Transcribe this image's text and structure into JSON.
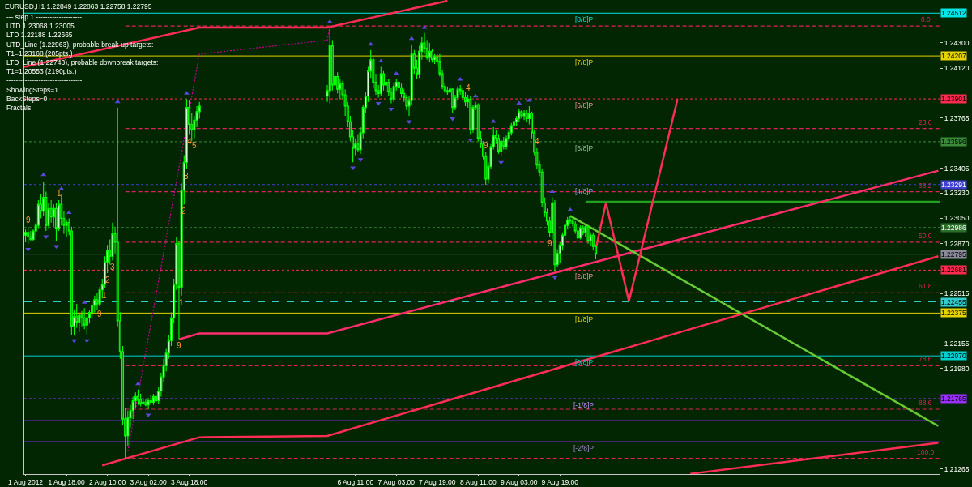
{
  "chart_data": {
    "type": "candlestick",
    "title": "EURUSD,H1 1.22849 1.22863 1.22758 1.22795",
    "color": "#00ff00",
    "x": [
      "2012-08-01T02:00",
      "2012-08-01T03:00",
      "2012-08-01T04:00",
      "2012-08-01T05:00",
      "2012-08-01T06:00",
      "2012-08-01T07:00",
      "2012-08-01T08:00",
      "2012-08-01T09:00",
      "2012-08-01T10:00",
      "2012-08-01T11:00",
      "2012-08-01T12:00",
      "2012-08-01T13:00",
      "2012-08-01T14:00",
      "2012-08-01T15:00",
      "2012-08-01T16:00",
      "2012-08-01T17:00",
      "2012-08-01T18:00",
      "2012-08-01T19:00",
      "2012-08-01T20:00",
      "2012-08-01T21:00",
      "2012-08-01T22:00",
      "2012-08-01T23:00",
      "2012-08-02T00:00",
      "2012-08-02T01:00",
      "2012-08-02T02:00",
      "2012-08-02T03:00",
      "2012-08-02T04:00",
      "2012-08-02T05:00",
      "2012-08-02T06:00",
      "2012-08-02T07:00",
      "2012-08-02T08:00",
      "2012-08-02T09:00",
      "2012-08-02T10:00",
      "2012-08-02T11:00",
      "2012-08-02T12:00",
      "2012-08-02T13:00",
      "2012-08-02T14:00",
      "2012-08-02T15:00",
      "2012-08-02T16:00",
      "2012-08-02T17:00",
      "2012-08-02T18:00",
      "2012-08-02T19:00",
      "2012-08-02T20:00",
      "2012-08-02T21:00",
      "2012-08-02T22:00",
      "2012-08-02T23:00",
      "2012-08-03T00:00",
      "2012-08-03T01:00",
      "2012-08-03T02:00",
      "2012-08-03T03:00",
      "2012-08-03T04:00",
      "2012-08-03T05:00",
      "2012-08-03T06:00",
      "2012-08-03T07:00",
      "2012-08-03T08:00",
      "2012-08-03T09:00",
      "2012-08-03T10:00",
      "2012-08-03T11:00",
      "2012-08-03T12:00",
      "2012-08-03T13:00",
      "2012-08-03T14:00",
      "2012-08-03T15:00",
      "2012-08-03T16:00",
      "2012-08-03T17:00",
      "2012-08-03T18:00",
      "2012-08-03T19:00",
      "2012-08-03T20:00",
      "2012-08-03T21:00",
      "2012-08-03T22:00",
      "2012-08-06T00:00",
      "2012-08-06T01:00",
      "2012-08-06T02:00",
      "2012-08-06T03:00",
      "2012-08-06T04:00",
      "2012-08-06T05:00",
      "2012-08-06T06:00",
      "2012-08-06T07:00",
      "2012-08-06T08:00",
      "2012-08-06T09:00",
      "2012-08-06T10:00",
      "2012-08-06T11:00",
      "2012-08-06T12:00",
      "2012-08-06T13:00",
      "2012-08-06T14:00",
      "2012-08-06T15:00",
      "2012-08-06T16:00",
      "2012-08-06T17:00",
      "2012-08-06T18:00",
      "2012-08-06T19:00",
      "2012-08-06T20:00",
      "2012-08-06T21:00",
      "2012-08-06T22:00",
      "2012-08-06T23:00",
      "2012-08-07T00:00",
      "2012-08-07T01:00",
      "2012-08-07T02:00",
      "2012-08-07T03:00",
      "2012-08-07T04:00",
      "2012-08-07T05:00",
      "2012-08-07T06:00",
      "2012-08-07T07:00",
      "2012-08-07T08:00",
      "2012-08-07T09:00",
      "2012-08-07T10:00",
      "2012-08-07T11:00",
      "2012-08-07T12:00",
      "2012-08-07T13:00",
      "2012-08-07T14:00",
      "2012-08-07T15:00",
      "2012-08-07T16:00",
      "2012-08-07T17:00",
      "2012-08-07T18:00",
      "2012-08-07T19:00",
      "2012-08-07T20:00",
      "2012-08-07T21:00",
      "2012-08-07T22:00",
      "2012-08-07T23:00",
      "2012-08-08T00:00",
      "2012-08-08T01:00",
      "2012-08-08T02:00",
      "2012-08-08T03:00",
      "2012-08-08T04:00",
      "2012-08-08T05:00",
      "2012-08-08T06:00",
      "2012-08-08T07:00",
      "2012-08-08T08:00",
      "2012-08-08T09:00",
      "2012-08-08T10:00",
      "2012-08-08T11:00",
      "2012-08-08T12:00",
      "2012-08-08T13:00",
      "2012-08-08T14:00",
      "2012-08-08T15:00",
      "2012-08-08T16:00",
      "2012-08-08T17:00",
      "2012-08-08T18:00",
      "2012-08-08T19:00",
      "2012-08-08T20:00",
      "2012-08-08T21:00",
      "2012-08-08T22:00",
      "2012-08-08T23:00",
      "2012-08-09T00:00",
      "2012-08-09T01:00",
      "2012-08-09T02:00",
      "2012-08-09T03:00",
      "2012-08-09T04:00",
      "2012-08-09T05:00",
      "2012-08-09T06:00",
      "2012-08-09T07:00",
      "2012-08-09T08:00",
      "2012-08-09T09:00",
      "2012-08-09T10:00",
      "2012-08-09T11:00",
      "2012-08-09T12:00",
      "2012-08-09T13:00",
      "2012-08-09T14:00",
      "2012-08-09T15:00",
      "2012-08-09T16:00",
      "2012-08-09T17:00",
      "2012-08-09T18:00",
      "2012-08-09T19:00",
      "2012-08-09T20:00",
      "2012-08-09T21:00",
      "2012-08-09T22:00",
      "2012-08-09T23:00",
      "2012-08-10T00:00",
      "2012-08-10T01:00",
      "2012-08-10T02:00",
      "2012-08-10T03:00",
      "2012-08-10T04:00",
      "2012-08-10T05:00",
      "2012-08-10T06:00",
      "2012-08-10T07:00",
      "2012-08-10T08:00",
      "2012-08-10T09:00"
    ],
    "ohlc": [
      [
        1.2293,
        1.2297,
        1.2288,
        1.2295
      ],
      [
        1.2295,
        1.2299,
        1.2287,
        1.2292
      ],
      [
        1.2292,
        1.2296,
        1.2289,
        1.229
      ],
      [
        1.229,
        1.2297,
        1.2289,
        1.2296
      ],
      [
        1.2296,
        1.2302,
        1.2293,
        1.23
      ],
      [
        1.23,
        1.2318,
        1.2298,
        1.2315
      ],
      [
        1.2315,
        1.2322,
        1.2305,
        1.231
      ],
      [
        1.231,
        1.2331,
        1.2307,
        1.232
      ],
      [
        1.232,
        1.2324,
        1.2296,
        1.23
      ],
      [
        1.23,
        1.2316,
        1.2298,
        1.2312
      ],
      [
        1.2312,
        1.2318,
        1.2302,
        1.2306
      ],
      [
        1.2306,
        1.2315,
        1.2299,
        1.2312
      ],
      [
        1.2312,
        1.2316,
        1.2289,
        1.2298
      ],
      [
        1.2298,
        1.2318,
        1.2296,
        1.2315
      ],
      [
        1.2315,
        1.2322,
        1.23,
        1.2305
      ],
      [
        1.2305,
        1.231,
        1.2294,
        1.23
      ],
      [
        1.23,
        1.2304,
        1.2292,
        1.2302
      ],
      [
        1.2302,
        1.2305,
        1.2293,
        1.2296
      ],
      [
        1.2296,
        1.2299,
        1.2222,
        1.2228
      ],
      [
        1.2228,
        1.224,
        1.2222,
        1.2235
      ],
      [
        1.2235,
        1.2244,
        1.2227,
        1.2231
      ],
      [
        1.2231,
        1.2238,
        1.2224,
        1.2236
      ],
      [
        1.2236,
        1.2239,
        1.2228,
        1.2234
      ],
      [
        1.2234,
        1.2241,
        1.2226,
        1.2229
      ],
      [
        1.2229,
        1.2237,
        1.2222,
        1.2234
      ],
      [
        1.2234,
        1.224,
        1.223,
        1.2238
      ],
      [
        1.2238,
        1.2246,
        1.2234,
        1.2243
      ],
      [
        1.2243,
        1.225,
        1.2238,
        1.2247
      ],
      [
        1.2247,
        1.2252,
        1.224,
        1.2244
      ],
      [
        1.2244,
        1.2256,
        1.2242,
        1.2254
      ],
      [
        1.2254,
        1.2262,
        1.2248,
        1.2258
      ],
      [
        1.2258,
        1.2278,
        1.2255,
        1.2274
      ],
      [
        1.2274,
        1.2286,
        1.2266,
        1.2282
      ],
      [
        1.2282,
        1.229,
        1.2272,
        1.2278
      ],
      [
        1.2278,
        1.2302,
        1.2275,
        1.2294
      ],
      [
        1.2294,
        1.2299,
        1.228,
        1.2288
      ],
      [
        1.2288,
        1.2384,
        1.2228,
        1.2232
      ],
      [
        1.2232,
        1.2238,
        1.2205,
        1.221
      ],
      [
        1.221,
        1.2214,
        1.2158,
        1.2162
      ],
      [
        1.2162,
        1.217,
        1.2134,
        1.215
      ],
      [
        1.215,
        1.2168,
        1.2143,
        1.2163
      ],
      [
        1.2163,
        1.2172,
        1.2156,
        1.2168
      ],
      [
        1.2168,
        1.2178,
        1.2162,
        1.2175
      ],
      [
        1.2175,
        1.2181,
        1.217,
        1.2178
      ],
      [
        1.2178,
        1.2183,
        1.2172,
        1.2176
      ],
      [
        1.2176,
        1.218,
        1.2171,
        1.2173
      ],
      [
        1.2173,
        1.2177,
        1.2172,
        1.2174
      ],
      [
        1.2174,
        1.2176,
        1.2171,
        1.2172
      ],
      [
        1.2172,
        1.2177,
        1.2169,
        1.2175
      ],
      [
        1.2175,
        1.2179,
        1.2172,
        1.2174
      ],
      [
        1.2174,
        1.218,
        1.2172,
        1.2178
      ],
      [
        1.2178,
        1.2182,
        1.2173,
        1.2175
      ],
      [
        1.2175,
        1.2185,
        1.2173,
        1.2182
      ],
      [
        1.2182,
        1.2195,
        1.2178,
        1.2192
      ],
      [
        1.2192,
        1.2205,
        1.2188,
        1.22
      ],
      [
        1.22,
        1.2212,
        1.2196,
        1.2209
      ],
      [
        1.2209,
        1.2222,
        1.2205,
        1.2218
      ],
      [
        1.2218,
        1.2238,
        1.2214,
        1.2234
      ],
      [
        1.2234,
        1.2262,
        1.223,
        1.2258
      ],
      [
        1.2258,
        1.2292,
        1.2254,
        1.2287
      ],
      [
        1.2287,
        1.2289,
        1.2219,
        1.2256
      ],
      [
        1.2256,
        1.233,
        1.225,
        1.2325
      ],
      [
        1.2325,
        1.235,
        1.2315,
        1.2345
      ],
      [
        1.2345,
        1.239,
        1.234,
        1.2384
      ],
      [
        1.2384,
        1.2389,
        1.2365,
        1.2372
      ],
      [
        1.2372,
        1.238,
        1.236,
        1.2368
      ],
      [
        1.2368,
        1.2378,
        1.2362,
        1.2375
      ],
      [
        1.2375,
        1.2385,
        1.237,
        1.2381
      ],
      [
        1.2381,
        1.2388,
        1.2376,
        1.2385
      ],
      [
        1.2392,
        1.24,
        1.2388,
        1.2396
      ],
      [
        1.2396,
        1.2441,
        1.2387,
        1.2428
      ],
      [
        1.2428,
        1.2432,
        1.2396,
        1.24
      ],
      [
        1.24,
        1.241,
        1.2395,
        1.2406
      ],
      [
        1.2406,
        1.2409,
        1.2394,
        1.2397
      ],
      [
        1.2397,
        1.2404,
        1.239,
        1.2401
      ],
      [
        1.2401,
        1.2403,
        1.239,
        1.2393
      ],
      [
        1.2393,
        1.2397,
        1.2378,
        1.2385
      ],
      [
        1.2385,
        1.2388,
        1.237,
        1.2374
      ],
      [
        1.2374,
        1.2378,
        1.236,
        1.2363
      ],
      [
        1.2363,
        1.2368,
        1.2345,
        1.2355
      ],
      [
        1.2355,
        1.2362,
        1.235,
        1.2358
      ],
      [
        1.2358,
        1.2365,
        1.2352,
        1.2354
      ],
      [
        1.2354,
        1.237,
        1.2351,
        1.2366
      ],
      [
        1.2366,
        1.2386,
        1.2362,
        1.2384
      ],
      [
        1.2384,
        1.2395,
        1.238,
        1.2392
      ],
      [
        1.2392,
        1.2413,
        1.2388,
        1.241
      ],
      [
        1.241,
        1.2425,
        1.2405,
        1.2418
      ],
      [
        1.2418,
        1.242,
        1.2398,
        1.2402
      ],
      [
        1.2402,
        1.2408,
        1.2393,
        1.2396
      ],
      [
        1.2396,
        1.24,
        1.2391,
        1.2394
      ],
      [
        1.2394,
        1.2413,
        1.2392,
        1.2408
      ],
      [
        1.2408,
        1.241,
        1.2396,
        1.24
      ],
      [
        1.24,
        1.2404,
        1.2395,
        1.2402
      ],
      [
        1.2402,
        1.2404,
        1.2392,
        1.2395
      ],
      [
        1.2395,
        1.2398,
        1.2387,
        1.239
      ],
      [
        1.239,
        1.2401,
        1.2388,
        1.2399
      ],
      [
        1.2399,
        1.2404,
        1.2396,
        1.2402
      ],
      [
        1.2402,
        1.2403,
        1.2395,
        1.2398
      ],
      [
        1.2398,
        1.2401,
        1.2391,
        1.2394
      ],
      [
        1.2394,
        1.2397,
        1.2388,
        1.2391
      ],
      [
        1.2391,
        1.2393,
        1.2382,
        1.2385
      ],
      [
        1.2385,
        1.2392,
        1.2378,
        1.2389
      ],
      [
        1.2389,
        1.2429,
        1.2386,
        1.2422
      ],
      [
        1.2422,
        1.2425,
        1.2408,
        1.2412
      ],
      [
        1.2412,
        1.2418,
        1.2404,
        1.2408
      ],
      [
        1.2408,
        1.2428,
        1.2405,
        1.2424
      ],
      [
        1.2424,
        1.2434,
        1.2418,
        1.243
      ],
      [
        1.243,
        1.2437,
        1.2422,
        1.2426
      ],
      [
        1.2426,
        1.2432,
        1.2418,
        1.242
      ],
      [
        1.242,
        1.243,
        1.2416,
        1.2424
      ],
      [
        1.2424,
        1.2426,
        1.2416,
        1.2418
      ],
      [
        1.2418,
        1.2422,
        1.2415,
        1.242
      ],
      [
        1.242,
        1.2422,
        1.2414,
        1.2417
      ],
      [
        1.2417,
        1.2422,
        1.2406,
        1.2408
      ],
      [
        1.2408,
        1.2411,
        1.2397,
        1.2399
      ],
      [
        1.2399,
        1.2402,
        1.2394,
        1.2396
      ],
      [
        1.2396,
        1.2399,
        1.2393,
        1.2395
      ],
      [
        1.2395,
        1.24,
        1.2392,
        1.2397
      ],
      [
        1.2397,
        1.2398,
        1.238,
        1.2384
      ],
      [
        1.2384,
        1.2393,
        1.2382,
        1.2391
      ],
      [
        1.2391,
        1.2399,
        1.2389,
        1.2397
      ],
      [
        1.2397,
        1.24,
        1.2393,
        1.2396
      ],
      [
        1.2396,
        1.2398,
        1.2389,
        1.2391
      ],
      [
        1.2391,
        1.2395,
        1.2385,
        1.2388
      ],
      [
        1.2388,
        1.2393,
        1.2384,
        1.239
      ],
      [
        1.239,
        1.2392,
        1.2365,
        1.2368
      ],
      [
        1.2368,
        1.2386,
        1.2366,
        1.2384
      ],
      [
        1.2384,
        1.2388,
        1.2382,
        1.2386
      ],
      [
        1.2386,
        1.2387,
        1.236,
        1.2362
      ],
      [
        1.2362,
        1.2367,
        1.2355,
        1.2358
      ],
      [
        1.2358,
        1.236,
        1.2347,
        1.2349
      ],
      [
        1.2349,
        1.2352,
        1.2329,
        1.2333
      ],
      [
        1.2333,
        1.2345,
        1.233,
        1.2342
      ],
      [
        1.2342,
        1.2358,
        1.234,
        1.2356
      ],
      [
        1.2356,
        1.237,
        1.2354,
        1.2364
      ],
      [
        1.2364,
        1.2368,
        1.2358,
        1.2362
      ],
      [
        1.2362,
        1.2365,
        1.2351,
        1.2353
      ],
      [
        1.2353,
        1.2362,
        1.2349,
        1.236
      ],
      [
        1.236,
        1.2363,
        1.2354,
        1.2356
      ],
      [
        1.2356,
        1.2364,
        1.2354,
        1.2362
      ],
      [
        1.2362,
        1.2368,
        1.236,
        1.2366
      ],
      [
        1.2366,
        1.2373,
        1.2364,
        1.2371
      ],
      [
        1.2371,
        1.2376,
        1.2369,
        1.2374
      ],
      [
        1.2374,
        1.2378,
        1.2371,
        1.2376
      ],
      [
        1.2376,
        1.2383,
        1.2374,
        1.2381
      ],
      [
        1.2381,
        1.2382,
        1.2376,
        1.2378
      ],
      [
        1.2378,
        1.2382,
        1.2375,
        1.238
      ],
      [
        1.238,
        1.2382,
        1.2374,
        1.2376
      ],
      [
        1.2376,
        1.2385,
        1.2372,
        1.238
      ],
      [
        1.238,
        1.2381,
        1.2362,
        1.2366
      ],
      [
        1.2366,
        1.2368,
        1.235,
        1.2352
      ],
      [
        1.2352,
        1.2355,
        1.234,
        1.2343
      ],
      [
        1.2343,
        1.2346,
        1.2335,
        1.2338
      ],
      [
        1.2338,
        1.234,
        1.2313,
        1.2316
      ],
      [
        1.2316,
        1.232,
        1.2306,
        1.2309
      ],
      [
        1.2309,
        1.2312,
        1.23,
        1.2303
      ],
      [
        1.2303,
        1.2306,
        1.2292,
        1.2295
      ],
      [
        1.2295,
        1.232,
        1.229,
        1.2316
      ],
      [
        1.2316,
        1.2318,
        1.2267,
        1.2272
      ],
      [
        1.2272,
        1.2283,
        1.227,
        1.228
      ],
      [
        1.228,
        1.2288,
        1.2273,
        1.2286
      ],
      [
        1.2286,
        1.2295,
        1.2282,
        1.2293
      ],
      [
        1.2293,
        1.2302,
        1.2289,
        1.23
      ],
      [
        1.23,
        1.2306,
        1.2297,
        1.2304
      ],
      [
        1.2304,
        1.2307,
        1.2301,
        1.2303
      ],
      [
        1.2303,
        1.2305,
        1.2299,
        1.2301
      ],
      [
        1.2301,
        1.2303,
        1.2294,
        1.2296
      ],
      [
        1.2296,
        1.2299,
        1.2289,
        1.2291
      ],
      [
        1.2291,
        1.23,
        1.229,
        1.2298
      ],
      [
        1.2298,
        1.23,
        1.2293,
        1.2295
      ],
      [
        1.2295,
        1.2301,
        1.2292,
        1.2299
      ],
      [
        1.2299,
        1.23,
        1.2287,
        1.2289
      ],
      [
        1.2289,
        1.2295,
        1.2285,
        1.2293
      ],
      [
        1.2293,
        1.2295,
        1.2282,
        1.2285
      ],
      [
        1.22849,
        1.22863,
        1.22758,
        1.22795
      ]
    ],
    "series": [
      {
        "type": "line",
        "x": [
          "2012-08-02T17:00",
          "2012-08-15T23:30"
        ],
        "values": [
          1.2442,
          1.2442
        ],
        "color": "#e0205a",
        "line_style": "dashed"
      },
      {
        "type": "line",
        "x": [
          "2012-08-02T17:00",
          "2012-08-15T23:30"
        ],
        "values": [
          1.2369,
          1.2369
        ],
        "color": "#e0205a",
        "line_style": "dashed"
      },
      {
        "type": "line",
        "x": [
          "2012-08-02T17:00",
          "2012-08-15T23:30"
        ],
        "values": [
          1.2324,
          1.2324
        ],
        "color": "#e0205a",
        "line_style": "dashed"
      },
      {
        "type": "line",
        "x": [
          "2012-08-02T17:00",
          "2012-08-15T23:30"
        ],
        "values": [
          1.2288,
          1.2288
        ],
        "color": "#e0205a",
        "line_style": "dashed"
      },
      {
        "type": "line",
        "x": [
          "2012-08-02T17:00",
          "2012-08-15T23:30"
        ],
        "values": [
          1.2252,
          1.2252
        ],
        "color": "#e0205a",
        "line_style": "dashed"
      },
      {
        "type": "line",
        "x": [
          "2012-08-02T17:00",
          "2012-08-15T23:30"
        ],
        "values": [
          1.22,
          1.22
        ],
        "color": "#e0205a",
        "line_style": "dashed"
      },
      {
        "type": "line",
        "x": [
          "2012-08-02T17:00",
          "2012-08-15T23:30"
        ],
        "values": [
          1.2169,
          1.2169
        ],
        "color": "#e0205a",
        "line_style": "dashed"
      },
      {
        "type": "line",
        "x": [
          "2012-08-02T17:00",
          "2012-08-15T23:30"
        ],
        "values": [
          1.2134,
          1.2134
        ],
        "color": "#e0205a",
        "line_style": "dashed"
      },
      {
        "type": "line",
        "x": [
          "2012-08-10T05:00",
          "2012-08-15T23:30"
        ],
        "values": [
          1.23168,
          1.23168
        ],
        "color": "#22a022",
        "line_style": "solid"
      },
      {
        "type": "line",
        "x": [
          "2012-08-01T01:30",
          "2012-08-03T22:00",
          "2012-08-06T00:00",
          "2012-08-07T23:00"
        ],
        "values": [
          1.2413,
          1.2441,
          1.2441,
          1.246
        ],
        "color": "#ff2d55",
        "line_style": "solid"
      },
      {
        "type": "line",
        "x": [
          "2012-08-03T14:00",
          "2012-08-03T22:00",
          "2012-08-06T00:00",
          "2012-08-15T23:00"
        ],
        "values": [
          1.22188,
          1.2223,
          1.2223,
          1.2339
        ],
        "color": "#ff2d6e",
        "line_style": "solid"
      },
      {
        "type": "line",
        "x": [
          "2012-08-09T23:00",
          "2012-08-15T23:00"
        ],
        "values": [
          1.23068,
          1.2157
        ],
        "color": "#66cc33",
        "line_style": "solid"
      },
      {
        "type": "line",
        "x": [
          "2012-08-02T08:00",
          "2012-08-03T22:00",
          "2012-08-06T00:00",
          "2012-08-15T23:00"
        ],
        "values": [
          1.2129,
          1.2149,
          1.215,
          1.2278
        ],
        "color": "#ff2d55",
        "line_style": "solid"
      },
      {
        "type": "line",
        "x": [
          "2012-08-11T22:00",
          "2012-08-15T23:00"
        ],
        "values": [
          1.2123,
          1.2145
        ],
        "color": "#ff2d55",
        "line_style": "solid"
      },
      {
        "type": "line",
        "x": [
          "2012-08-10T09:00",
          "2012-08-10T13:00",
          "2012-08-10T22:00",
          "2012-08-11T17:00"
        ],
        "values": [
          1.2283,
          1.2316,
          1.2246,
          1.239
        ],
        "color": "#ff2d55",
        "line_style": "solid"
      },
      {
        "type": "line",
        "x": [
          "2012-08-02T18:00",
          "2012-08-03T22:00",
          "2012-08-06T00:00",
          "2012-08-06T01:00"
        ],
        "values": [
          1.2139,
          1.2422,
          1.2432,
          1.2442
        ],
        "color": "#cc0099",
        "line_style": "dotted"
      },
      {
        "type": "scatter",
        "marker": "triangle",
        "color": "#5a48d8",
        "x": [
          "2012-08-01T03:00",
          "2012-08-01T09:00",
          "2012-08-01T10:00",
          "2012-08-01T14:00",
          "2012-08-01T16:00",
          "2012-08-01T19:00",
          "2012-08-01T21:00",
          "2012-08-02T01:00",
          "2012-08-02T02:00",
          "2012-08-02T14:00",
          "2012-08-02T22:00",
          "2012-08-03T02:00",
          "2012-08-03T17:00",
          "2012-08-06T01:00",
          "2012-08-06T10:00",
          "2012-08-06T13:00",
          "2012-08-06T17:00",
          "2012-08-06T20:00",
          "2012-08-06T21:00",
          "2012-08-07T01:00",
          "2012-08-07T03:00",
          "2012-08-07T08:00",
          "2012-08-07T09:00",
          "2012-08-07T14:00",
          "2012-08-08T01:00",
          "2012-08-08T04:00",
          "2012-08-08T08:00",
          "2012-08-08T10:00",
          "2012-08-08T17:00",
          "2012-08-08T20:00",
          "2012-08-09T03:00",
          "2012-08-09T07:00",
          "2012-08-09T16:00",
          "2012-08-09T17:00",
          "2012-08-09T23:00"
        ],
        "values": [
          1.2283,
          1.2336,
          1.2292,
          1.2285,
          1.2326,
          1.2309,
          1.2218,
          1.2245,
          1.2218,
          1.2388,
          1.2187,
          1.2165,
          1.2394,
          1.2445,
          1.2341,
          1.2347,
          1.2429,
          1.2387,
          1.2417,
          1.2383,
          1.2408,
          1.2374,
          1.2433,
          1.2441,
          1.2376,
          1.2404,
          1.2361,
          1.2392,
          1.2374,
          1.2345,
          1.2387,
          1.2389,
          1.2324,
          1.2263,
          1.2311
        ]
      }
    ],
    "ref_lines": [
      {
        "axis": "y",
        "value": 1.24512,
        "label": "[8/8]P",
        "color": "#00e5e5",
        "line_style": "solid"
      },
      {
        "axis": "y",
        "value": 1.24207,
        "label": "[7/8]P",
        "color": "#e6d200",
        "line_style": "solid"
      },
      {
        "axis": "y",
        "value": 1.23901,
        "label": "[6/8]P",
        "color": "#ff2a50",
        "line_style": "dotted"
      },
      {
        "axis": "y",
        "value": 1.23596,
        "label": "[5/8]P",
        "color": "#3a8a3a",
        "line_style": "dotted"
      },
      {
        "axis": "y",
        "value": 1.23291,
        "label": "[4/8]P",
        "color": "#4040d0",
        "line_style": "dotted"
      },
      {
        "axis": "y",
        "value": 1.22986,
        "label": null,
        "color": "#2a6e2a",
        "line_style": "dotted"
      },
      {
        "axis": "y",
        "value": 1.22795,
        "label": null,
        "color": "#8a8a9a",
        "line_style": "solid"
      },
      {
        "axis": "y",
        "value": 1.22681,
        "label": "[2/8]P",
        "color": "#ff2a50",
        "line_style": "dotted"
      },
      {
        "axis": "y",
        "value": 1.22455,
        "label": null,
        "color": "#33cccc",
        "line_style": "dashed"
      },
      {
        "axis": "y",
        "value": 1.22375,
        "label": "[1/8]P",
        "color": "#e6d200",
        "line_style": "solid"
      },
      {
        "axis": "y",
        "value": 1.2207,
        "label": "[0/8]P",
        "color": "#00d2d2",
        "line_style": "solid"
      },
      {
        "axis": "y",
        "value": 1.21765,
        "label": "[-1/8]P",
        "color": "#9a30ff",
        "line_style": "dotted"
      },
      {
        "axis": "y",
        "value": 1.2161,
        "label": null,
        "color": "#5e24a8",
        "line_style": "solid"
      },
      {
        "axis": "y",
        "value": 1.2146,
        "label": "[-2/8]P",
        "color": "#5e24a8",
        "line_style": "solid"
      }
    ],
    "annotations": [
      "--- step 1 --------------------",
      "UTD 1.23068 1.23005",
      "LTD 1.22188 1.22665",
      "UTD_Line (1.22963), probable break-up targets:",
      "T1=1.23168 (205pts.)",
      "LTD_Line (1.22743), probable downbreak targets:",
      "T1=1.20553 (2190pts.)",
      "---------------------------------",
      "ShowingSteps=1",
      "BackSteps=0",
      "Fractals",
      {
        "text": "1.24512",
        "x": "2012-08-15T23:30",
        "y": 1.24512
      },
      {
        "text": "1.24207",
        "x": "2012-08-15T23:30",
        "y": 1.24207
      },
      {
        "text": "1.23901",
        "x": "2012-08-15T23:30",
        "y": 1.23901
      },
      {
        "text": "1.23596",
        "x": "2012-08-15T23:30",
        "y": 1.23596
      },
      {
        "text": "1.23291",
        "x": "2012-08-15T23:30",
        "y": 1.23291
      },
      {
        "text": "1.22986",
        "x": "2012-08-15T23:30",
        "y": 1.22986
      },
      {
        "text": "1.22795",
        "x": "2012-08-15T23:30",
        "y": 1.22795
      },
      {
        "text": "1.22681",
        "x": "2012-08-15T23:30",
        "y": 1.22681
      },
      {
        "text": "1.22455",
        "x": "2012-08-15T23:30",
        "y": 1.22455
      },
      {
        "text": "1.22375",
        "x": "2012-08-15T23:30",
        "y": 1.22375
      },
      {
        "text": "1.22070",
        "x": "2012-08-15T23:30",
        "y": 1.2207
      },
      {
        "text": "1.21765",
        "x": "2012-08-15T23:30",
        "y": 1.21765
      },
      {
        "text": "0.0",
        "x": "2012-08-15T18:00",
        "y": 1.2442
      },
      {
        "text": "23.6",
        "x": "2012-08-15T18:00",
        "y": 1.2369
      },
      {
        "text": "38.2",
        "x": "2012-08-15T18:00",
        "y": 1.2324
      },
      {
        "text": "50.0",
        "x": "2012-08-15T18:00",
        "y": 1.2288
      },
      {
        "text": "61.8",
        "x": "2012-08-15T18:00",
        "y": 1.2252
      },
      {
        "text": "78.6",
        "x": "2012-08-15T18:00",
        "y": 1.22
      },
      {
        "text": "88.6",
        "x": "2012-08-15T18:00",
        "y": 1.2169
      },
      {
        "text": "100.0",
        "x": "2012-08-15T18:00",
        "y": 1.2134
      },
      {
        "text": "9",
        "x": "2012-08-01T03:00",
        "y": 1.2299
      },
      {
        "text": "1",
        "x": "2012-08-01T15:00",
        "y": 1.2318
      },
      {
        "text": "9",
        "x": "2012-08-02T07:00",
        "y": 1.2242
      },
      {
        "text": "1",
        "x": "2012-08-02T09:00",
        "y": 1.2255
      },
      {
        "text": "2",
        "x": "2012-08-02T10:00",
        "y": 1.2266
      },
      {
        "text": "3",
        "x": "2012-08-02T12:00",
        "y": 1.2275
      },
      {
        "text": "9",
        "x": "2012-08-03T14:00",
        "y": 1.2219
      },
      {
        "text": "1",
        "x": "2012-08-03T15:00",
        "y": 1.225
      },
      {
        "text": "2",
        "x": "2012-08-03T16:00",
        "y": 1.2315
      },
      {
        "text": "3",
        "x": "2012-08-03T17:00",
        "y": 1.234
      },
      {
        "text": "4",
        "x": "2012-08-03T18:00",
        "y": 1.2365
      },
      {
        "text": "5",
        "x": "2012-08-03T20:00",
        "y": 1.2362
      },
      {
        "text": "4",
        "x": "2012-08-08T07:00",
        "y": 1.2393
      },
      {
        "text": "9",
        "x": "2012-08-08T14:00",
        "y": 1.2352
      },
      {
        "text": "4",
        "x": "2012-08-09T10:00",
        "y": 1.2355
      },
      {
        "text": "9",
        "x": "2012-08-09T15:00",
        "y": 1.2292
      }
    ],
    "xlim": [
      "2012-08-01T01:30",
      "2012-08-15T23:30"
    ],
    "ylim": [
      1.21228,
      1.24606
    ],
    "xticks": [
      {
        "value": "2012-08-01T02:00",
        "label": "1 Aug 2012"
      },
      {
        "value": "2012-08-01T18:00",
        "label": "1 Aug 18:00"
      },
      {
        "value": "2012-08-02T10:00",
        "label": "2 Aug 10:00"
      },
      {
        "value": "2012-08-03T02:00",
        "label": "3 Aug 02:00"
      },
      {
        "value": "2012-08-03T18:00",
        "label": "3 Aug 18:00"
      },
      {
        "value": "2012-08-06T11:00",
        "label": "6 Aug 11:00"
      },
      {
        "value": "2012-08-07T03:00",
        "label": "7 Aug 03:00"
      },
      {
        "value": "2012-08-07T19:00",
        "label": "7 Aug 19:00"
      },
      {
        "value": "2012-08-08T11:00",
        "label": "8 Aug 11:00"
      },
      {
        "value": "2012-08-09T03:00",
        "label": "9 Aug 03:00"
      },
      {
        "value": "2012-08-09T19:00",
        "label": "9 Aug 19:00"
      }
    ],
    "yticks": [
      {
        "value": 1.243,
        "label": "1.24300"
      },
      {
        "value": 1.2412,
        "label": "1.24120"
      },
      {
        "value": 1.23765,
        "label": "1.23765"
      },
      {
        "value": 1.23405,
        "label": "1.23405"
      },
      {
        "value": 1.2323,
        "label": "1.23230"
      },
      {
        "value": 1.2305,
        "label": "1.23050"
      },
      {
        "value": 1.2287,
        "label": "1.22870"
      },
      {
        "value": 1.22515,
        "label": "1.22515"
      },
      {
        "value": 1.22155,
        "label": "1.22155"
      },
      {
        "value": 1.2198,
        "label": "1.21980"
      },
      {
        "value": 1.21265,
        "label": "1.21265"
      }
    ]
  }
}
